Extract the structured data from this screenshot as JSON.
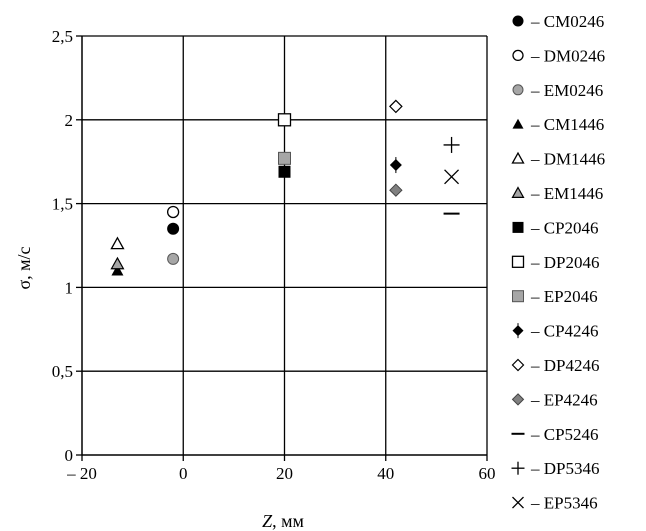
{
  "chart_data": {
    "type": "scatter",
    "xlabel": "Z, мм",
    "xlabel_italic_part": "Z",
    "xlabel_rest": ", мм",
    "ylabel": "σ, м/с",
    "xlim": [
      -20,
      60
    ],
    "ylim": [
      0,
      2.5
    ],
    "xticks": [
      -20,
      0,
      20,
      40,
      60
    ],
    "xtick_labels": [
      "– 20",
      "0",
      "20",
      "40",
      "60"
    ],
    "yticks": [
      0,
      0.5,
      1,
      1.5,
      2,
      2.5
    ],
    "ytick_labels": [
      "0",
      "0,5",
      "1",
      "1,5",
      "2",
      "2,5"
    ],
    "grid": true,
    "legend_position": "right",
    "legend_separator": "–",
    "series": [
      {
        "name": "CM0246",
        "marker": "circle-filled",
        "color": "#000000",
        "points": [
          {
            "x": -2,
            "y": 1.35
          }
        ]
      },
      {
        "name": "DM0246",
        "marker": "circle-open",
        "color": "#000000",
        "points": [
          {
            "x": -2,
            "y": 1.45
          }
        ]
      },
      {
        "name": "EM0246",
        "marker": "circle-gray",
        "color": "#a6a6a6",
        "points": [
          {
            "x": -2,
            "y": 1.17
          }
        ]
      },
      {
        "name": "CM1446",
        "marker": "triangle-filled",
        "color": "#000000",
        "points": [
          {
            "x": -13,
            "y": 1.1
          }
        ]
      },
      {
        "name": "DM1446",
        "marker": "triangle-open",
        "color": "#000000",
        "points": [
          {
            "x": -13,
            "y": 1.26
          }
        ]
      },
      {
        "name": "EM1446",
        "marker": "triangle-gray",
        "color": "#a6a6a6",
        "points": [
          {
            "x": -13,
            "y": 1.14
          }
        ]
      },
      {
        "name": "CP2046",
        "marker": "square-filled",
        "color": "#000000",
        "points": [
          {
            "x": 20,
            "y": 1.69
          }
        ]
      },
      {
        "name": "DP2046",
        "marker": "square-open",
        "color": "#000000",
        "points": [
          {
            "x": 20,
            "y": 2.0
          }
        ]
      },
      {
        "name": "EP2046",
        "marker": "square-gray",
        "color": "#a6a6a6",
        "points": [
          {
            "x": 20,
            "y": 1.77
          }
        ]
      },
      {
        "name": "CP4246",
        "marker": "diamond-filled",
        "color": "#000000",
        "points": [
          {
            "x": 42,
            "y": 1.73
          }
        ]
      },
      {
        "name": "DP4246",
        "marker": "diamond-open",
        "color": "#000000",
        "points": [
          {
            "x": 42,
            "y": 2.08
          }
        ]
      },
      {
        "name": "EP4246",
        "marker": "diamond-gray",
        "color": "#808080",
        "points": [
          {
            "x": 42,
            "y": 1.58
          }
        ]
      },
      {
        "name": "CP5246",
        "marker": "dash",
        "color": "#000000",
        "points": [
          {
            "x": 53,
            "y": 1.44
          }
        ]
      },
      {
        "name": "DP5346",
        "marker": "plus",
        "color": "#000000",
        "points": [
          {
            "x": 53,
            "y": 1.85
          }
        ]
      },
      {
        "name": "EP5346",
        "marker": "cross",
        "color": "#000000",
        "points": [
          {
            "x": 53,
            "y": 1.66
          }
        ]
      }
    ]
  }
}
